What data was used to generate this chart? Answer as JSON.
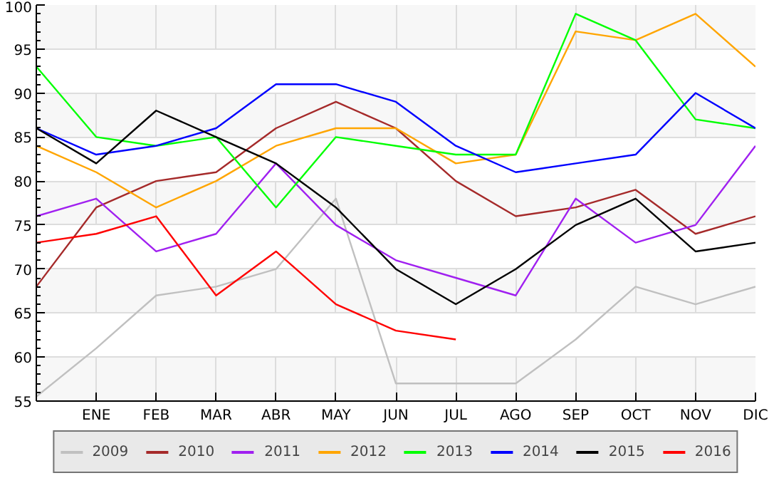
{
  "chart_data": {
    "type": "line",
    "categories": [
      null,
      "ENE",
      "FEB",
      "MAR",
      "ABR",
      "MAY",
      "JUN",
      "JUL",
      "AGO",
      "SEP",
      "OCT",
      "NOV",
      "DIC"
    ],
    "series": [
      {
        "name": "2009",
        "color": "#c0c0c0",
        "values": [
          55.5,
          61,
          67,
          68,
          70,
          78,
          57,
          57,
          57,
          62,
          68,
          66,
          68
        ]
      },
      {
        "name": "2010",
        "color": "#a52a2a",
        "values": [
          68,
          77,
          80,
          81,
          86,
          89,
          86,
          80,
          76,
          77,
          79,
          74,
          76
        ]
      },
      {
        "name": "2011",
        "color": "#a020f0",
        "values": [
          76,
          78,
          72,
          74,
          82,
          75,
          71,
          69,
          67,
          78,
          73,
          75,
          84
        ]
      },
      {
        "name": "2012",
        "color": "#ffa500",
        "values": [
          84,
          81,
          77,
          80,
          84,
          86,
          86,
          82,
          83,
          97,
          96,
          99,
          93
        ]
      },
      {
        "name": "2013",
        "color": "#00ff00",
        "values": [
          93,
          85,
          84,
          85,
          77,
          85,
          84,
          83,
          83,
          99,
          96,
          87,
          86
        ]
      },
      {
        "name": "2014",
        "color": "#0000ff",
        "values": [
          86,
          83,
          84,
          86,
          91,
          91,
          89,
          84,
          81,
          82,
          83,
          90,
          86
        ]
      },
      {
        "name": "2015",
        "color": "#000000",
        "values": [
          86,
          82,
          88,
          85,
          82,
          77,
          70,
          66,
          70,
          75,
          78,
          72,
          73
        ]
      },
      {
        "name": "2016",
        "color": "#ff0000",
        "values": [
          73,
          74,
          76,
          67,
          72,
          66,
          63,
          62,
          null,
          null,
          null,
          null,
          null
        ]
      }
    ],
    "ylim": [
      55,
      100
    ],
    "yticks": [
      55,
      60,
      65,
      70,
      75,
      80,
      85,
      90,
      95,
      100
    ],
    "grid": true,
    "legend": "bottom",
    "marker": "none",
    "line_style": "solid"
  }
}
